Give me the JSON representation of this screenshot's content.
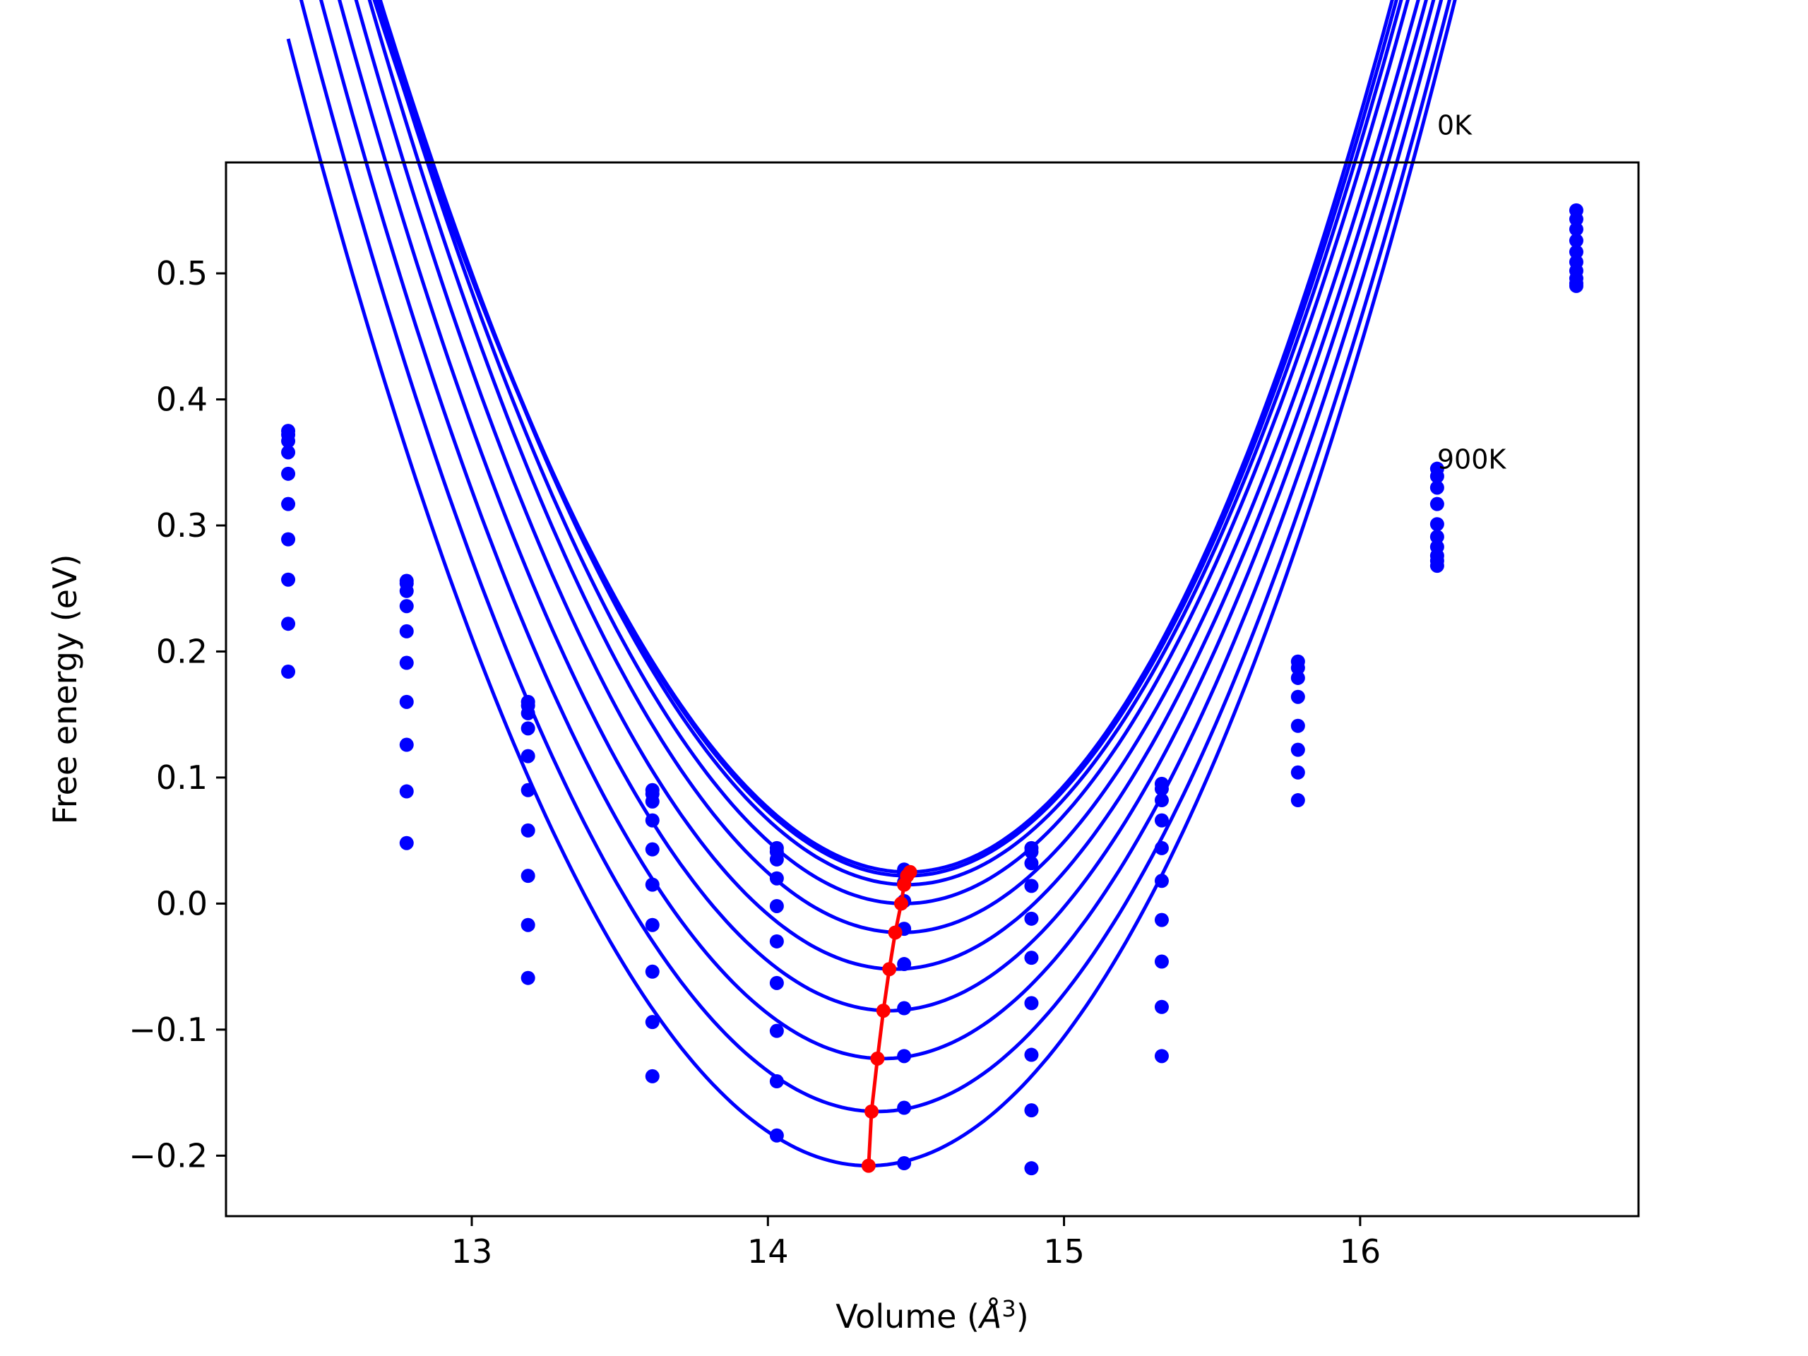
{
  "chart_data": {
    "type": "line",
    "xlabel": "Volume (",
    "xlabel_unit": "Å",
    "xlabel_exp": "3",
    "xlabel_close": ")",
    "ylabel": "Free energy (eV)",
    "xlim": [
      12.17,
      16.94
    ],
    "ylim": [
      -0.248,
      0.588
    ],
    "xticks": [
      13,
      14,
      15,
      16
    ],
    "xtick_labels": [
      "13",
      "14",
      "15",
      "16"
    ],
    "yticks": [
      -0.2,
      -0.1,
      0.0,
      0.1,
      0.2,
      0.3,
      0.4,
      0.5
    ],
    "ytick_labels": [
      "−0.2",
      "−0.1",
      "0.0",
      "0.1",
      "0.2",
      "0.3",
      "0.4",
      "0.5"
    ],
    "grid": false,
    "legend": "none",
    "annotations": [
      {
        "text": "0K",
        "x": 16.26,
        "y": 0.61
      },
      {
        "text": "900K",
        "x": 16.26,
        "y": 0.345
      }
    ],
    "colors": {
      "curves": "#0000ff",
      "points": "#0000ff",
      "minima": "#ff0000"
    },
    "volumes": [
      12.38,
      12.78,
      13.19,
      13.61,
      14.03,
      14.46,
      14.89,
      15.33,
      15.79,
      16.26,
      16.73
    ],
    "series": [
      {
        "curve": {
          "v0": 14.47,
          "e0": 0.025,
          "a": 0.2368,
          "b": 0.0128
        },
        "points": [
          0.375,
          0.256,
          0.16,
          0.09,
          0.044,
          0.027,
          0.044,
          0.095,
          0.192,
          0.345,
          0.55
        ]
      },
      {
        "curve": {
          "v0": 14.47,
          "e0": 0.022,
          "a": 0.2366,
          "b": 0.0108
        },
        "points": [
          0.372,
          0.254,
          0.157,
          0.087,
          0.041,
          0.024,
          0.041,
          0.091,
          0.187,
          0.339,
          0.543
        ]
      },
      {
        "curve": {
          "v0": 14.47,
          "e0": 0.015,
          "a": 0.2374,
          "b": 0.0088
        },
        "points": [
          0.367,
          0.248,
          0.151,
          0.081,
          0.035,
          0.017,
          0.032,
          0.082,
          0.179,
          0.33,
          0.535
        ]
      },
      {
        "curve": {
          "v0": 14.46,
          "e0": 0.0,
          "a": 0.237,
          "b": 0.0063
        },
        "points": [
          0.358,
          0.236,
          0.139,
          0.066,
          0.02,
          0.002,
          0.014,
          0.066,
          0.164,
          0.317,
          0.526
        ]
      },
      {
        "curve": {
          "v0": 14.45,
          "e0": -0.023,
          "a": 0.2362,
          "b": 0.0037
        },
        "points": [
          0.341,
          0.216,
          0.117,
          0.043,
          -0.002,
          -0.02,
          -0.012,
          0.044,
          0.141,
          0.301,
          0.517
        ]
      },
      {
        "curve": {
          "v0": 14.43,
          "e0": -0.052,
          "a": 0.2356,
          "b": 0.002
        },
        "points": [
          0.317,
          0.191,
          0.09,
          0.015,
          -0.03,
          -0.048,
          -0.043,
          0.018,
          0.122,
          0.291,
          0.509
        ]
      },
      {
        "curve": {
          "v0": 14.41,
          "e0": -0.085,
          "a": 0.235,
          "b": 0.0013
        },
        "points": [
          0.289,
          0.16,
          0.058,
          -0.017,
          -0.063,
          -0.083,
          -0.079,
          -0.013,
          0.104,
          0.283,
          0.502
        ]
      },
      {
        "curve": {
          "v0": 14.39,
          "e0": -0.123,
          "a": 0.2348,
          "b": 0.001
        },
        "points": [
          0.257,
          0.126,
          0.022,
          -0.054,
          -0.101,
          -0.121,
          -0.12,
          -0.046,
          0.082,
          0.276,
          0.496
        ]
      },
      {
        "curve": {
          "v0": 14.37,
          "e0": -0.165,
          "a": 0.2346,
          "b": 0.0009
        },
        "points": [
          0.222,
          0.089,
          -0.017,
          -0.094,
          -0.141,
          -0.162,
          -0.164,
          -0.082,
          null,
          0.272,
          0.492
        ]
      },
      {
        "curve": {
          "v0": 14.34,
          "e0": -0.208,
          "a": 0.2343,
          "b": 0.0008
        },
        "points": [
          0.184,
          0.048,
          -0.059,
          -0.137,
          -0.184,
          -0.206,
          -0.21,
          -0.121,
          null,
          0.268,
          0.49
        ]
      }
    ],
    "minima": {
      "x": [
        14.48,
        14.47,
        14.46,
        14.45,
        14.43,
        14.41,
        14.39,
        14.37,
        14.35,
        14.34
      ],
      "y": [
        0.025,
        0.022,
        0.015,
        0.0,
        -0.023,
        -0.052,
        -0.085,
        -0.123,
        -0.165,
        -0.208
      ]
    }
  }
}
